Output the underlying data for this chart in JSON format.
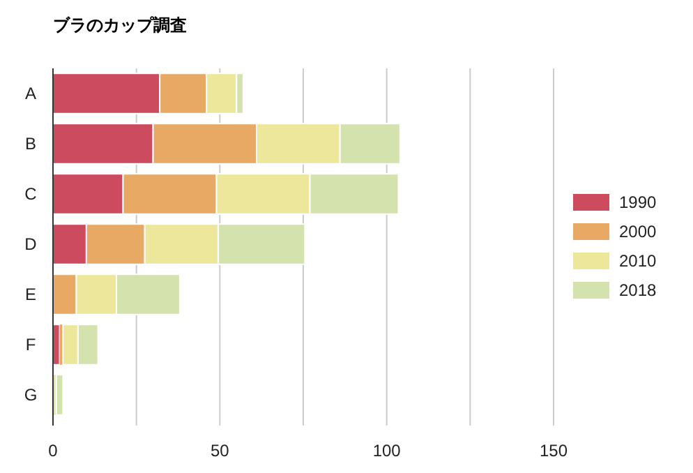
{
  "chart_data": {
    "type": "bar",
    "orientation": "horizontal",
    "stacked": true,
    "title": "ブラのカップ調査",
    "categories": [
      "A",
      "B",
      "C",
      "D",
      "E",
      "F",
      "G"
    ],
    "series": [
      {
        "name": "1990",
        "color": "#cc4b5e",
        "values": [
          32,
          30,
          21,
          10,
          0,
          2,
          0
        ]
      },
      {
        "name": "2000",
        "color": "#e8a964",
        "values": [
          14,
          31,
          28,
          17.5,
          7,
          1,
          0
        ]
      },
      {
        "name": "2010",
        "color": "#ede79c",
        "values": [
          9,
          25,
          28,
          22,
          12,
          4.5,
          1
        ]
      },
      {
        "name": "2018",
        "color": "#d4e2ae",
        "values": [
          2,
          18,
          26.5,
          26,
          19,
          6,
          2
        ]
      }
    ],
    "xlim": [
      0,
      150
    ],
    "xticks": [
      0,
      {
        "value": 25,
        "label": null
      },
      50,
      {
        "value": 75,
        "label": null
      },
      100,
      {
        "value": 125,
        "label": null
      },
      150
    ],
    "grid": "x",
    "legend": "right"
  }
}
